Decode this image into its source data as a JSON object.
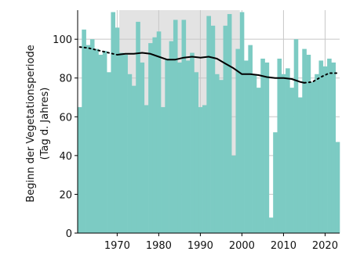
{
  "chart_data": {
    "type": "bar",
    "ylabel_line1": "Beginn der Vegetationsperiode",
    "ylabel_line2": "(Tag d. Jahres)",
    "xlim": [
      1960.5,
      2023.5
    ],
    "ylim": [
      0,
      115
    ],
    "xticks": [
      1970,
      1980,
      1990,
      2000,
      2010,
      2020
    ],
    "yticks": [
      0,
      20,
      40,
      60,
      80,
      100
    ],
    "colors": {
      "bars": "#7ccbc3",
      "background": "#ffffff",
      "shaded_period": "#e3e3e3",
      "grid": "#c8c8c8",
      "trend": "#000000"
    },
    "shaded_periods": [
      [
        1970.5,
        1999.5
      ]
    ],
    "bars": {
      "years": [
        1961,
        1962,
        1963,
        1964,
        1965,
        1966,
        1967,
        1968,
        1969,
        1970,
        1971,
        1972,
        1973,
        1974,
        1975,
        1976,
        1977,
        1978,
        1979,
        1980,
        1981,
        1982,
        1983,
        1984,
        1985,
        1986,
        1987,
        1988,
        1989,
        1990,
        1991,
        1992,
        1993,
        1994,
        1995,
        1996,
        1997,
        1998,
        1999,
        2000,
        2001,
        2002,
        2003,
        2004,
        2005,
        2006,
        2007,
        2008,
        2009,
        2010,
        2011,
        2012,
        2013,
        2014,
        2015,
        2016,
        2017,
        2018,
        2019,
        2020,
        2021,
        2022,
        2023
      ],
      "values": [
        65,
        105,
        97,
        100,
        95,
        92,
        94,
        83,
        114,
        106,
        93,
        92,
        82,
        76,
        109,
        88,
        66,
        98,
        101,
        104,
        65,
        90,
        99,
        110,
        88,
        110,
        89,
        93,
        83,
        65,
        66,
        112,
        107,
        82,
        79,
        107,
        113,
        40,
        95,
        114,
        89,
        97,
        82,
        75,
        90,
        88,
        8,
        52,
        90,
        82,
        85,
        75,
        100,
        70,
        95,
        92,
        78,
        82,
        89,
        86,
        90,
        88,
        47
      ]
    },
    "trend": {
      "solid": {
        "x": [
          1970,
          1972,
          1974,
          1976,
          1978,
          1980,
          1982,
          1984,
          1986,
          1988,
          1990,
          1992,
          1994,
          1996,
          1998,
          2000,
          2002,
          2004,
          2006,
          2008,
          2010,
          2012,
          2014,
          2015
        ],
        "y": [
          92,
          92.5,
          92.5,
          93,
          92.5,
          91,
          89.5,
          89.5,
          90.5,
          91,
          90.5,
          91,
          90,
          87.5,
          85,
          82,
          82,
          81.5,
          80.5,
          80,
          80,
          79.5,
          78,
          77.5
        ]
      },
      "dotted_left": {
        "x": [
          1961,
          1963,
          1965,
          1967,
          1969,
          1970
        ],
        "y": [
          96,
          95.5,
          94.5,
          93.5,
          92.5,
          92
        ]
      },
      "dotted_right": {
        "x": [
          2015,
          2017,
          2019,
          2021,
          2023
        ],
        "y": [
          77.5,
          78,
          80.5,
          82.5,
          82.5
        ]
      }
    }
  }
}
